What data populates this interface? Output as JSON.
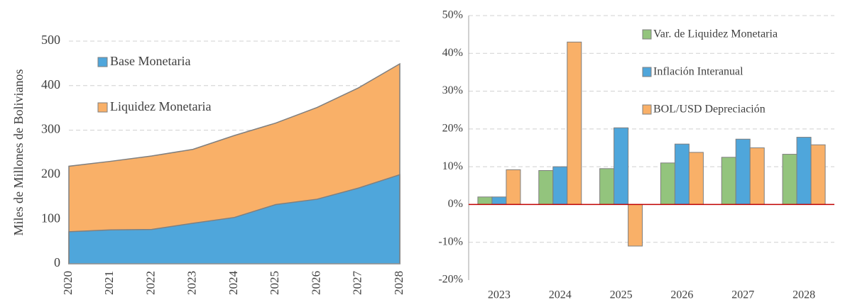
{
  "chart_data": [
    {
      "type": "area",
      "ylabel": "Miles de Millones de Bolivianos",
      "categories": [
        "2020",
        "2021",
        "2022",
        "2023",
        "2024",
        "2025",
        "2026",
        "2027",
        "2028"
      ],
      "series": [
        {
          "name": "Base Monetaria",
          "color": "#4fa6db",
          "values": [
            72,
            76,
            77,
            91,
            104,
            133,
            145,
            170,
            200
          ]
        },
        {
          "name": "Liquidez Monetaria",
          "color": "#f9b068",
          "values": [
            219,
            230,
            242,
            257,
            288,
            316,
            351,
            395,
            449
          ]
        }
      ],
      "ylim": [
        0,
        500
      ],
      "yticks": [
        0,
        100,
        200,
        300,
        400,
        500
      ],
      "grid": true
    },
    {
      "type": "bar",
      "categories": [
        "2023",
        "2024",
        "2025",
        "2026",
        "2027",
        "2028"
      ],
      "series": [
        {
          "name": "Var. de Liquidez Monetaria",
          "color": "#93c47d",
          "values": [
            2,
            9,
            9.5,
            11,
            12.5,
            13.3
          ]
        },
        {
          "name": "Inflación Interanual",
          "color": "#4fa6db",
          "values": [
            2,
            10,
            20.3,
            16,
            17.3,
            17.8
          ]
        },
        {
          "name": "BOL/USD Depreciación",
          "color": "#f9b068",
          "values": [
            9.2,
            43,
            -11,
            13.8,
            15,
            15.8
          ]
        }
      ],
      "ylim": [
        -20,
        50
      ],
      "yticks": [
        {
          "value": -20,
          "label": "-20%"
        },
        {
          "value": -10,
          "label": "-10%"
        },
        {
          "value": 0,
          "label": "0%"
        },
        {
          "value": 10,
          "label": "10%"
        },
        {
          "value": 20,
          "label": "20%"
        },
        {
          "value": 30,
          "label": "30%"
        },
        {
          "value": 40,
          "label": "40%"
        },
        {
          "value": 50,
          "label": "50%"
        }
      ],
      "grid": true
    }
  ]
}
